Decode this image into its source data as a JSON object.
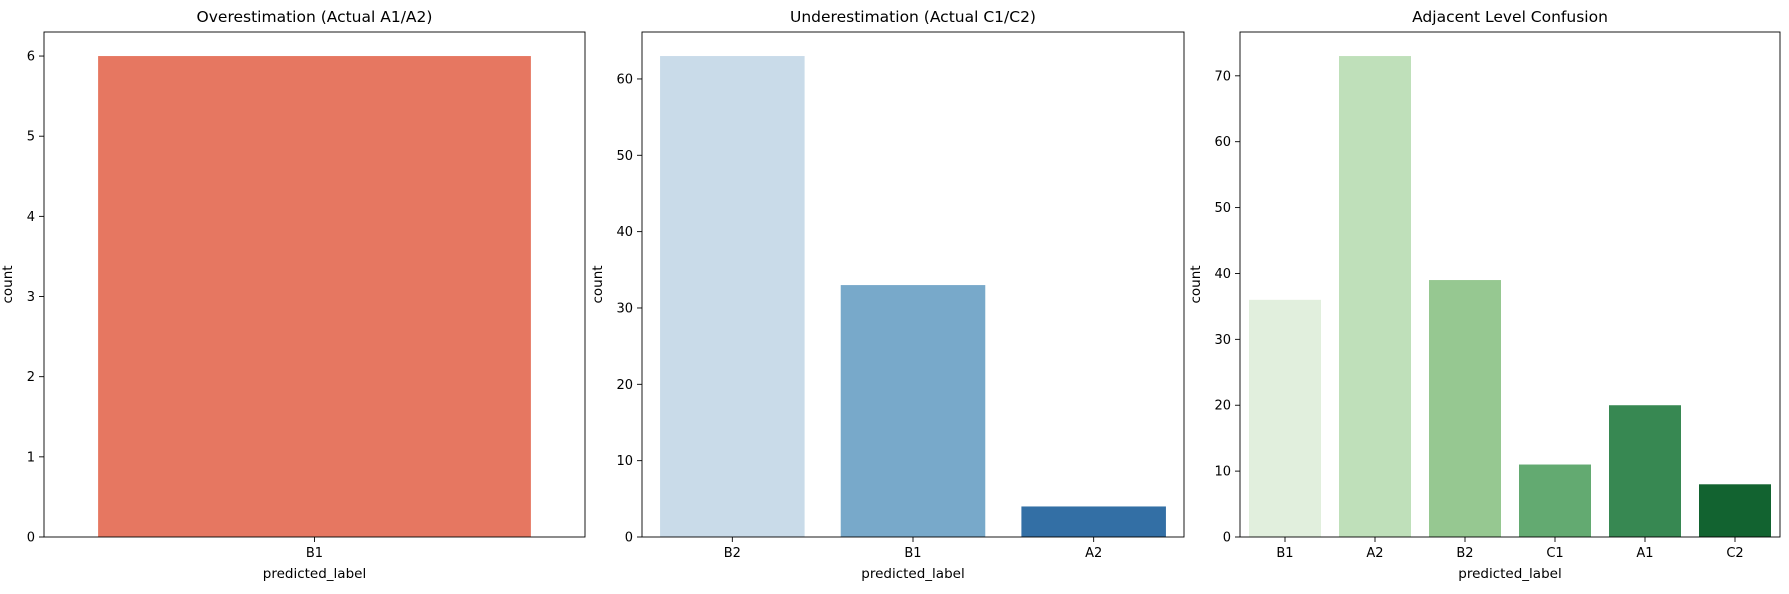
{
  "chart_data": [
    {
      "type": "bar",
      "title": "Overestimation (Actual A1/A2)",
      "xlabel": "predicted_label",
      "ylabel": "count",
      "categories": [
        "B1"
      ],
      "values": [
        6
      ],
      "colors": [
        "#e67761"
      ],
      "ylim": [
        0,
        6.3
      ],
      "yticks": [
        0,
        1,
        2,
        3,
        4,
        5,
        6
      ],
      "grid": false,
      "legend": "none"
    },
    {
      "type": "bar",
      "title": "Underestimation (Actual C1/C2)",
      "xlabel": "predicted_label",
      "ylabel": "count",
      "categories": [
        "B2",
        "B1",
        "A2"
      ],
      "values": [
        63,
        33,
        4
      ],
      "colors": [
        "#c9dbe9",
        "#78a9ca",
        "#336fa5"
      ],
      "ylim": [
        0,
        66.15
      ],
      "yticks": [
        0,
        10,
        20,
        30,
        40,
        50,
        60
      ],
      "grid": false,
      "legend": "none"
    },
    {
      "type": "bar",
      "title": "Adjacent Level Confusion",
      "xlabel": "predicted_label",
      "ylabel": "count",
      "categories": [
        "B1",
        "A2",
        "B2",
        "C1",
        "A1",
        "C2"
      ],
      "values": [
        36,
        73,
        39,
        11,
        20,
        8
      ],
      "colors": [
        "#e1efdd",
        "#bfe0ba",
        "#96c891",
        "#63aa71",
        "#378852",
        "#126330"
      ],
      "ylim": [
        0,
        76.65
      ],
      "yticks": [
        0,
        10,
        20,
        30,
        40,
        50,
        60,
        70
      ],
      "grid": false,
      "legend": "none"
    }
  ]
}
